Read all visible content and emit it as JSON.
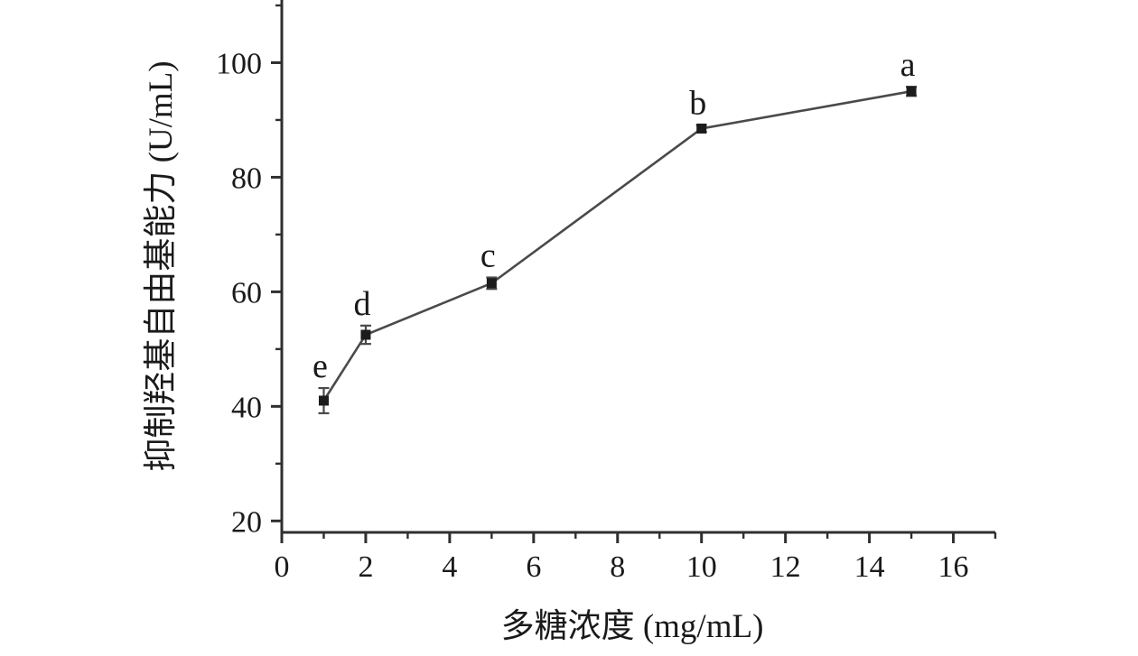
{
  "chart_data": {
    "type": "line",
    "title": "",
    "xlabel": "多糖浓度 (mg/mL)",
    "ylabel": "抑制羟基自由基能力 (U/mL)",
    "x": [
      1,
      2,
      5,
      10,
      15
    ],
    "y": [
      41,
      52.5,
      61.5,
      88.5,
      95
    ],
    "yerr": [
      2.2,
      1.6,
      1.0,
      0.6,
      0.8
    ],
    "point_labels": [
      "e",
      "d",
      "c",
      "b",
      "a"
    ],
    "xlim": [
      0,
      17
    ],
    "ylim": [
      18,
      110
    ],
    "xticks": [
      0,
      2,
      4,
      6,
      8,
      10,
      12,
      14,
      16
    ],
    "yticks": [
      20,
      40,
      60,
      80,
      100
    ],
    "x_minor_ticks": [
      1,
      3,
      5,
      7,
      9,
      11,
      13,
      15,
      17
    ],
    "y_minor_ticks": [
      30,
      50,
      70,
      90,
      110
    ],
    "grid": false,
    "legend": null,
    "marker": "square",
    "axis_color": "#2f2f2f",
    "line_color": "#4a4a4a",
    "marker_color": "#1c1c1c"
  }
}
